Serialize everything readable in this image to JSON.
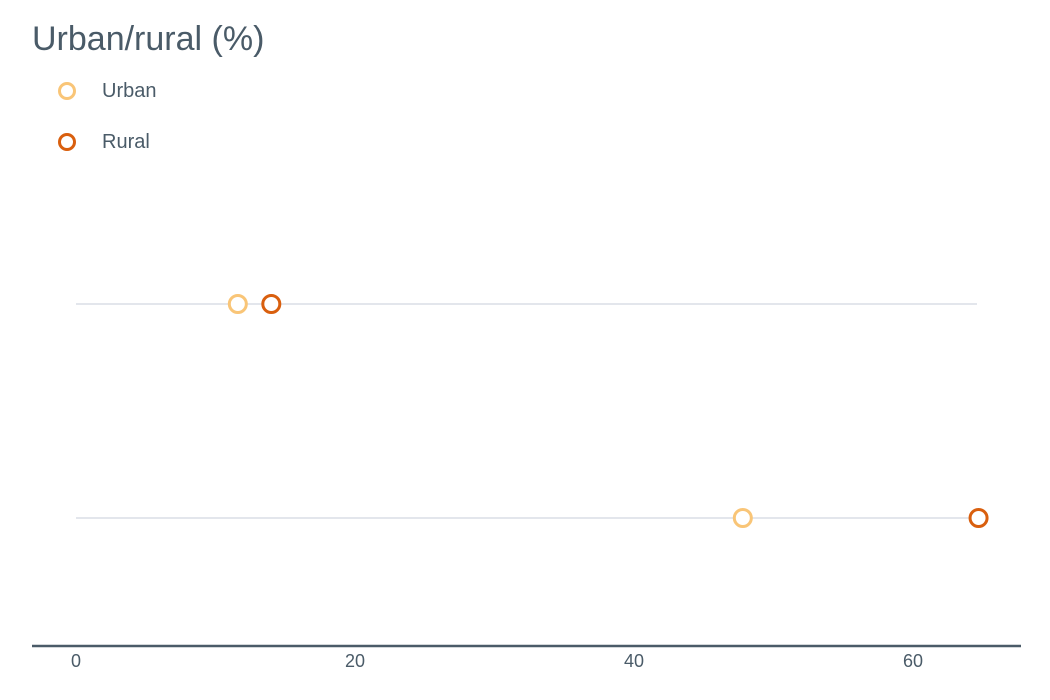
{
  "chart_data": {
    "type": "scatter",
    "title": "Urban/rural (%)",
    "xlim": [
      0,
      65
    ],
    "x_ticks": [
      "0",
      "20",
      "40",
      "60"
    ],
    "x_tick_values": [
      0,
      20,
      40,
      60
    ],
    "rows": 2,
    "series": [
      {
        "name": "Urban",
        "color": "#f9c577",
        "values": [
          11.6,
          47.8
        ]
      },
      {
        "name": "Rural",
        "color": "#d95f0e",
        "values": [
          14.0,
          64.7
        ]
      }
    ],
    "legend_position": "top-left",
    "grid": "horizontal row lines"
  }
}
